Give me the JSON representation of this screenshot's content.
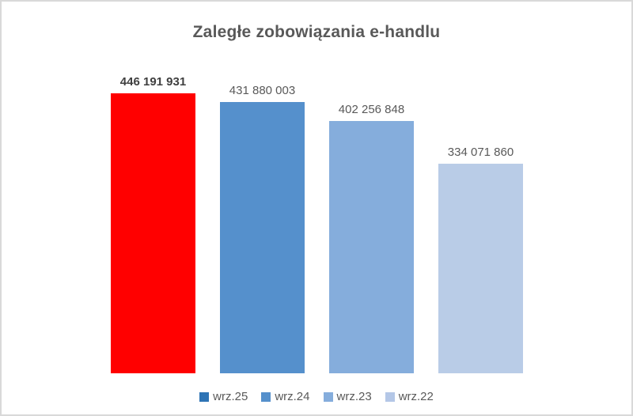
{
  "frame": {
    "background": "#FFFFFF",
    "border_color": "#D9D9D9"
  },
  "chart_data": {
    "type": "bar",
    "title": "Zaległe zobowiązania e-handlu",
    "title_color": "#595959",
    "categories": [
      "wrz.25",
      "wrz.24",
      "wrz.23",
      "wrz.22"
    ],
    "values": [
      446191931,
      431880003,
      402256848,
      334071860
    ],
    "value_labels": [
      "446 191 931",
      "431 880 003",
      "402 256 848",
      "334 071 860"
    ],
    "bar_colors": [
      "#FF0000",
      "#5590CC",
      "#85ADDC",
      "#B9CCE7"
    ],
    "emphasized_label_index": 0,
    "label_color": "#595959",
    "xlabel": "",
    "ylabel": "",
    "ylim": [
      0,
      491500000
    ],
    "grid": false,
    "axes_visible": false,
    "legend_position": "bottom",
    "legend": [
      {
        "label": "wrz.25",
        "color": "#2E74B5"
      },
      {
        "label": "wrz.24",
        "color": "#5590CC"
      },
      {
        "label": "wrz.23",
        "color": "#85ADDC"
      },
      {
        "label": "wrz.22",
        "color": "#B4C7E7"
      }
    ]
  }
}
